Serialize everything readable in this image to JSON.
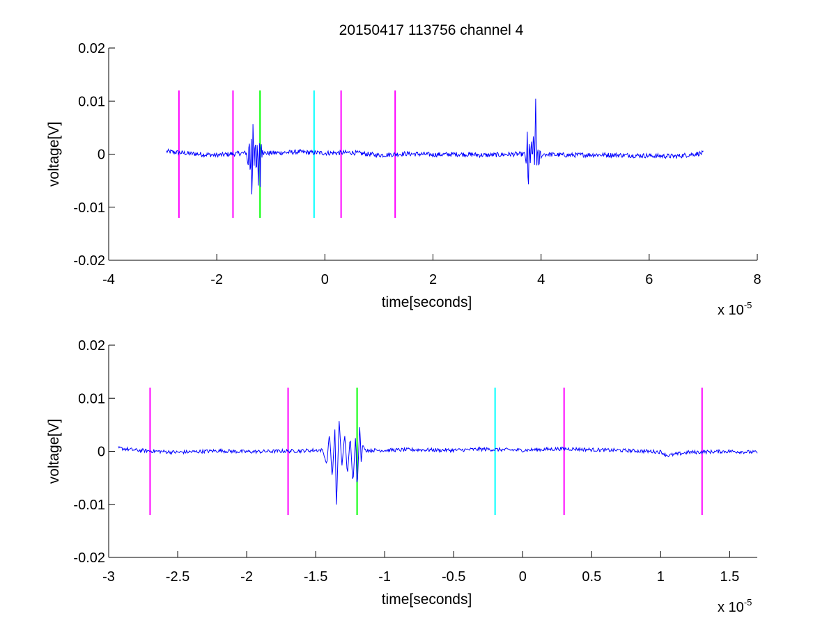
{
  "chart_data": [
    {
      "type": "line",
      "title": "20150417 113756 channel 4",
      "xlabel": "time[seconds]",
      "ylabel": "voltage[V]",
      "x_exponent_label": "x 10",
      "x_exponent_power": "-5",
      "xlim": [
        -4,
        8
      ],
      "ylim": [
        -0.02,
        0.02
      ],
      "xticks": [
        -4,
        -2,
        0,
        2,
        4,
        6,
        8
      ],
      "xtick_labels": [
        "-4",
        "-2",
        "0",
        "2",
        "4",
        "6",
        "8"
      ],
      "yticks": [
        -0.02,
        -0.01,
        0,
        0.01,
        0.02
      ],
      "ytick_labels": [
        "-0.02",
        "-0.01",
        "0",
        "0.01",
        "0.02"
      ],
      "signal_color": "#0000ff",
      "signal": {
        "x_start": -2.93,
        "x_end": 7.0,
        "baseline": [
          [
            -2.93,
            0.0005
          ],
          [
            -2.5,
            0.0001
          ],
          [
            -2.0,
            -0.0002
          ],
          [
            -1.5,
            0.0002
          ],
          [
            -1.0,
            0.0002
          ],
          [
            -0.5,
            0.0004
          ],
          [
            0.0,
            0.0002
          ],
          [
            0.5,
            0.0003
          ],
          [
            1.0,
            -0.0002
          ],
          [
            1.5,
            0.0001
          ],
          [
            2.0,
            -0.0001
          ],
          [
            2.5,
            0.0
          ],
          [
            3.0,
            -0.0002
          ],
          [
            3.5,
            0.0
          ],
          [
            4.0,
            0.0
          ],
          [
            4.5,
            -0.0002
          ],
          [
            5.0,
            -0.0001
          ],
          [
            5.5,
            -0.0002
          ],
          [
            6.0,
            -0.0003
          ],
          [
            6.5,
            -0.0004
          ],
          [
            7.0,
            0.0002
          ]
        ],
        "bursts": [
          {
            "points": [
              [
                -1.45,
                0.0002
              ],
              [
                -1.42,
                -0.0025
              ],
              [
                -1.4,
                0.0035
              ],
              [
                -1.38,
                -0.0052
              ],
              [
                -1.36,
                0.0045
              ],
              [
                -1.35,
                -0.011
              ],
              [
                -1.33,
                0.0058
              ],
              [
                -1.31,
                -0.0028
              ],
              [
                -1.29,
                0.0032
              ],
              [
                -1.27,
                -0.0045
              ],
              [
                -1.25,
                0.0028
              ],
              [
                -1.23,
                -0.0062
              ],
              [
                -1.21,
                0.0034
              ],
              [
                -1.2,
                -0.0075
              ],
              [
                -1.18,
                0.0052
              ],
              [
                -1.17,
                -0.0025
              ],
              [
                -1.16,
                0.0012
              ],
              [
                -1.14,
                0.0002
              ]
            ]
          },
          {
            "points": [
              [
                3.7,
                0.0
              ],
              [
                3.73,
                -0.0022
              ],
              [
                3.75,
                0.0062
              ],
              [
                3.76,
                -0.0108
              ],
              [
                3.78,
                0.0032
              ],
              [
                3.8,
                -0.0018
              ],
              [
                3.82,
                0.0028
              ],
              [
                3.84,
                -0.0012
              ],
              [
                3.86,
                0.0045
              ],
              [
                3.88,
                -0.003
              ],
              [
                3.9,
                0.0108
              ],
              [
                3.92,
                -0.0025
              ],
              [
                3.94,
                0.0018
              ],
              [
                3.96,
                -0.0032
              ],
              [
                3.98,
                0.0012
              ],
              [
                4.0,
                -0.0008
              ],
              [
                4.05,
                0.0002
              ]
            ]
          }
        ],
        "noise_amplitude": 0.00045
      },
      "markers": [
        {
          "x": -2.7,
          "color": "#ff00ff"
        },
        {
          "x": -1.7,
          "color": "#ff00ff"
        },
        {
          "x": -1.2,
          "color": "#00ff00"
        },
        {
          "x": -0.2,
          "color": "#00ffff"
        },
        {
          "x": 0.3,
          "color": "#ff00ff"
        },
        {
          "x": 1.3,
          "color": "#ff00ff"
        }
      ],
      "marker_range": [
        -0.012,
        0.012
      ]
    },
    {
      "type": "line",
      "title": "",
      "xlabel": "time[seconds]",
      "ylabel": "voltage[V]",
      "x_exponent_label": "x 10",
      "x_exponent_power": "-5",
      "xlim": [
        -3.0,
        1.7
      ],
      "ylim": [
        -0.02,
        0.02
      ],
      "xticks": [
        -3,
        -2.5,
        -2,
        -1.5,
        -1,
        -0.5,
        0,
        0.5,
        1,
        1.5
      ],
      "xtick_labels": [
        "-3",
        "-2.5",
        "-2",
        "-1.5",
        "-1",
        "-0.5",
        "0",
        "0.5",
        "1",
        "1.5"
      ],
      "yticks": [
        -0.02,
        -0.01,
        0,
        0.01,
        0.02
      ],
      "ytick_labels": [
        "-0.02",
        "-0.01",
        "0",
        "0.01",
        "0.02"
      ],
      "signal_color": "#0000ff",
      "signal": {
        "x_start": -2.93,
        "x_end": 1.7,
        "baseline": [
          [
            -2.93,
            0.0006
          ],
          [
            -2.8,
            0.0002
          ],
          [
            -2.5,
            -0.0002
          ],
          [
            -2.2,
            0.0001
          ],
          [
            -2.0,
            -0.0001
          ],
          [
            -1.8,
            0.0
          ],
          [
            -1.6,
            0.0001
          ],
          [
            -1.5,
            0.0002
          ],
          [
            -1.0,
            0.0002
          ],
          [
            -0.8,
            0.0003
          ],
          [
            -0.5,
            0.0002
          ],
          [
            -0.3,
            0.0004
          ],
          [
            0.0,
            0.0002
          ],
          [
            0.3,
            0.0005
          ],
          [
            0.5,
            0.0003
          ],
          [
            0.8,
            0.0001
          ],
          [
            1.0,
            -0.0001
          ],
          [
            1.05,
            -0.0008
          ],
          [
            1.2,
            -0.0002
          ],
          [
            1.5,
            0.0
          ],
          [
            1.7,
            -0.0002
          ]
        ],
        "bursts": [
          {
            "points": [
              [
                -1.45,
                0.0002
              ],
              [
                -1.42,
                -0.0025
              ],
              [
                -1.4,
                0.0035
              ],
              [
                -1.38,
                -0.0052
              ],
              [
                -1.36,
                0.0045
              ],
              [
                -1.35,
                -0.011
              ],
              [
                -1.33,
                0.0058
              ],
              [
                -1.31,
                -0.0028
              ],
              [
                -1.29,
                0.0032
              ],
              [
                -1.27,
                -0.0045
              ],
              [
                -1.25,
                0.0028
              ],
              [
                -1.23,
                -0.0062
              ],
              [
                -1.21,
                0.0034
              ],
              [
                -1.2,
                -0.0075
              ],
              [
                -1.18,
                0.0052
              ],
              [
                -1.17,
                -0.0025
              ],
              [
                -1.16,
                0.0012
              ],
              [
                -1.14,
                0.0002
              ]
            ]
          }
        ],
        "noise_amplitude": 0.00035
      },
      "markers": [
        {
          "x": -2.7,
          "color": "#ff00ff"
        },
        {
          "x": -1.7,
          "color": "#ff00ff"
        },
        {
          "x": -1.2,
          "color": "#00ff00"
        },
        {
          "x": -0.2,
          "color": "#00ffff"
        },
        {
          "x": 0.3,
          "color": "#ff00ff"
        },
        {
          "x": 1.3,
          "color": "#ff00ff"
        }
      ],
      "marker_range": [
        -0.012,
        0.012
      ]
    }
  ]
}
